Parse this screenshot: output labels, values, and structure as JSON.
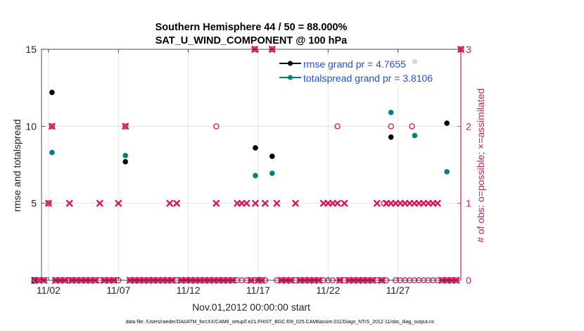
{
  "chart_data": {
    "type": "scatter",
    "title_line1": "Southern Hemisphere 44 / 50 = 88.000%",
    "title_line2": "SAT_U_WIND_COMPONENT @ 100 hPa",
    "xlabel": "Nov.01,2012 00:00:00 start",
    "ylabel_left": "rmse and totalspread",
    "ylabel_right": "# of obs: o=possible; ×=assimilated",
    "xlim": [
      0.5,
      30.5
    ],
    "ylim_left": [
      0,
      15
    ],
    "ylim_right": [
      0,
      3
    ],
    "x_ticks": [
      {
        "value": 1,
        "label": "11/02"
      },
      {
        "value": 6,
        "label": "11/07"
      },
      {
        "value": 11,
        "label": "11/12"
      },
      {
        "value": 16,
        "label": "11/17"
      },
      {
        "value": 21,
        "label": "11/22"
      },
      {
        "value": 26,
        "label": "11/27"
      }
    ],
    "y_ticks_left": [
      0,
      5,
      10,
      15
    ],
    "y_ticks_right": [
      0,
      1,
      2,
      3
    ],
    "legend": {
      "location": "top-right",
      "entries": [
        {
          "label": "rmse grand pr = 4.7655",
          "color": "#000000"
        },
        {
          "label": "totalspread grand pr = 3.8106",
          "color": "#008080"
        }
      ]
    },
    "colors": {
      "rmse": "#000000",
      "spread": "#008080",
      "obs": "#d6175b",
      "legend_text": "#1f4fe0",
      "grid": "#e0e0e0"
    },
    "series": [
      {
        "name": "rmse",
        "axis": "left",
        "points": [
          [
            1.25,
            12.2
          ],
          [
            6.5,
            7.7
          ],
          [
            15.8,
            8.6
          ],
          [
            17.0,
            8.05
          ],
          [
            25.5,
            9.3
          ],
          [
            27.2,
            14.2
          ],
          [
            29.5,
            10.2
          ]
        ]
      },
      {
        "name": "totalspread",
        "axis": "left",
        "points": [
          [
            1.25,
            8.3
          ],
          [
            6.5,
            8.1
          ],
          [
            15.8,
            6.8
          ],
          [
            17.0,
            6.95
          ],
          [
            25.5,
            10.9
          ],
          [
            27.2,
            9.4
          ],
          [
            29.5,
            7.05
          ]
        ]
      },
      {
        "name": "obs_possible",
        "axis": "right",
        "points": [
          [
            0,
            0
          ],
          [
            0.33,
            0
          ],
          [
            0.67,
            0
          ],
          [
            1.0,
            1
          ],
          [
            1.25,
            2
          ],
          [
            1.5,
            0
          ],
          [
            1.83,
            0
          ],
          [
            2.17,
            0
          ],
          [
            2.5,
            0
          ],
          [
            2.67,
            0
          ],
          [
            3.0,
            0
          ],
          [
            3.33,
            0
          ],
          [
            3.67,
            0
          ],
          [
            4.0,
            0
          ],
          [
            4.33,
            0
          ],
          [
            4.67,
            0
          ],
          [
            5.0,
            0
          ],
          [
            5.33,
            0
          ],
          [
            5.67,
            0
          ],
          [
            6.0,
            0
          ],
          [
            6.5,
            2
          ],
          [
            6.83,
            0
          ],
          [
            7.17,
            0
          ],
          [
            7.5,
            0
          ],
          [
            7.83,
            0
          ],
          [
            8.17,
            0
          ],
          [
            8.5,
            0
          ],
          [
            8.83,
            0
          ],
          [
            9.17,
            0
          ],
          [
            9.5,
            0
          ],
          [
            9.83,
            0
          ],
          [
            10.17,
            0
          ],
          [
            10.5,
            0
          ],
          [
            10.83,
            0
          ],
          [
            11.17,
            0
          ],
          [
            11.5,
            0
          ],
          [
            11.83,
            0
          ],
          [
            12.17,
            0
          ],
          [
            12.5,
            0
          ],
          [
            12.83,
            0
          ],
          [
            13.0,
            2
          ],
          [
            13.17,
            0
          ],
          [
            13.5,
            0
          ],
          [
            13.83,
            0
          ],
          [
            14.17,
            0
          ],
          [
            14.5,
            0
          ],
          [
            14.83,
            0
          ],
          [
            15.17,
            0
          ],
          [
            15.5,
            0
          ],
          [
            15.75,
            3
          ],
          [
            16.0,
            0
          ],
          [
            16.25,
            0
          ],
          [
            16.5,
            0
          ],
          [
            17.0,
            3
          ],
          [
            17.33,
            0
          ],
          [
            17.67,
            0
          ],
          [
            18.0,
            0
          ],
          [
            18.33,
            0
          ],
          [
            18.67,
            0
          ],
          [
            19.0,
            0
          ],
          [
            19.33,
            0
          ],
          [
            19.67,
            0
          ],
          [
            20.0,
            0
          ],
          [
            20.33,
            0
          ],
          [
            20.67,
            0
          ],
          [
            21.0,
            0
          ],
          [
            21.33,
            0
          ],
          [
            21.67,
            2
          ],
          [
            21.83,
            0
          ],
          [
            22.17,
            0
          ],
          [
            22.5,
            0
          ],
          [
            22.83,
            0
          ],
          [
            23.17,
            0
          ],
          [
            23.5,
            0
          ],
          [
            23.83,
            0
          ],
          [
            24.17,
            0
          ],
          [
            24.5,
            0
          ],
          [
            24.83,
            0
          ],
          [
            25.0,
            1
          ],
          [
            25.17,
            0
          ],
          [
            25.5,
            2
          ],
          [
            25.83,
            0
          ],
          [
            26.17,
            0
          ],
          [
            26.5,
            0
          ],
          [
            26.83,
            0
          ],
          [
            27.0,
            2
          ],
          [
            27.17,
            0
          ],
          [
            27.5,
            0
          ],
          [
            27.83,
            0
          ],
          [
            28.17,
            0
          ],
          [
            28.5,
            0
          ],
          [
            28.83,
            0
          ],
          [
            29.17,
            0
          ],
          [
            29.5,
            0
          ],
          [
            29.83,
            0
          ],
          [
            30.17,
            0
          ],
          [
            30.5,
            3
          ]
        ]
      },
      {
        "name": "obs_assimilated",
        "axis": "right",
        "points": [
          [
            0,
            0
          ],
          [
            0.33,
            0
          ],
          [
            0.67,
            0
          ],
          [
            1.0,
            1
          ],
          [
            1.25,
            2
          ],
          [
            1.5,
            0
          ],
          [
            1.83,
            0
          ],
          [
            2.17,
            0
          ],
          [
            2.5,
            1
          ],
          [
            2.67,
            0
          ],
          [
            3.0,
            0
          ],
          [
            3.33,
            0
          ],
          [
            3.67,
            0
          ],
          [
            4.0,
            0
          ],
          [
            4.33,
            0
          ],
          [
            4.67,
            1
          ],
          [
            5.0,
            0
          ],
          [
            5.33,
            0
          ],
          [
            5.67,
            0
          ],
          [
            6.0,
            1
          ],
          [
            6.5,
            2
          ],
          [
            6.83,
            0
          ],
          [
            7.17,
            0
          ],
          [
            7.5,
            0
          ],
          [
            7.83,
            0
          ],
          [
            8.17,
            0
          ],
          [
            8.5,
            0
          ],
          [
            8.83,
            0
          ],
          [
            9.17,
            0
          ],
          [
            9.5,
            0
          ],
          [
            9.67,
            1
          ],
          [
            9.83,
            0
          ],
          [
            10.17,
            1
          ],
          [
            10.5,
            0
          ],
          [
            10.83,
            0
          ],
          [
            11.17,
            0
          ],
          [
            11.5,
            0
          ],
          [
            11.83,
            0
          ],
          [
            12.17,
            0
          ],
          [
            12.5,
            0
          ],
          [
            12.83,
            0
          ],
          [
            13.0,
            1
          ],
          [
            13.17,
            0
          ],
          [
            13.5,
            0
          ],
          [
            13.83,
            0
          ],
          [
            14.17,
            0
          ],
          [
            14.5,
            1
          ],
          [
            14.83,
            1
          ],
          [
            15.17,
            1
          ],
          [
            15.5,
            0
          ],
          [
            15.75,
            3
          ],
          [
            15.8,
            1
          ],
          [
            16.0,
            0
          ],
          [
            16.25,
            0
          ],
          [
            16.5,
            1
          ],
          [
            17.0,
            3
          ],
          [
            17.33,
            1
          ],
          [
            17.67,
            0
          ],
          [
            18.0,
            0
          ],
          [
            18.33,
            0
          ],
          [
            18.67,
            1
          ],
          [
            19.0,
            0
          ],
          [
            19.33,
            0
          ],
          [
            19.67,
            0
          ],
          [
            20.0,
            0
          ],
          [
            20.33,
            0
          ],
          [
            20.67,
            1
          ],
          [
            21.0,
            1
          ],
          [
            21.33,
            1
          ],
          [
            21.67,
            1
          ],
          [
            21.83,
            0
          ],
          [
            22.17,
            1
          ],
          [
            22.5,
            0
          ],
          [
            22.83,
            0
          ],
          [
            23.17,
            0
          ],
          [
            23.5,
            0
          ],
          [
            23.83,
            0
          ],
          [
            24.17,
            0
          ],
          [
            24.5,
            1
          ],
          [
            24.83,
            0
          ],
          [
            25.17,
            1
          ],
          [
            25.5,
            1
          ],
          [
            25.83,
            1
          ],
          [
            26.17,
            1
          ],
          [
            26.5,
            1
          ],
          [
            26.83,
            1
          ],
          [
            27.17,
            1
          ],
          [
            27.5,
            1
          ],
          [
            27.83,
            1
          ],
          [
            28.17,
            1
          ],
          [
            28.5,
            1
          ],
          [
            28.83,
            1
          ],
          [
            29.17,
            0
          ],
          [
            29.5,
            0
          ],
          [
            29.83,
            0
          ],
          [
            30.17,
            0
          ],
          [
            30.5,
            3
          ]
        ]
      }
    ]
  },
  "footer_note": "data file: /Users/raeder/DAI/ATM_forcXX/CAM6_setup/f.e21.FHIST_BGC.f09_025.CAM6assim.011/Diags_NTrS_2012-11/obs_diag_output.nc"
}
